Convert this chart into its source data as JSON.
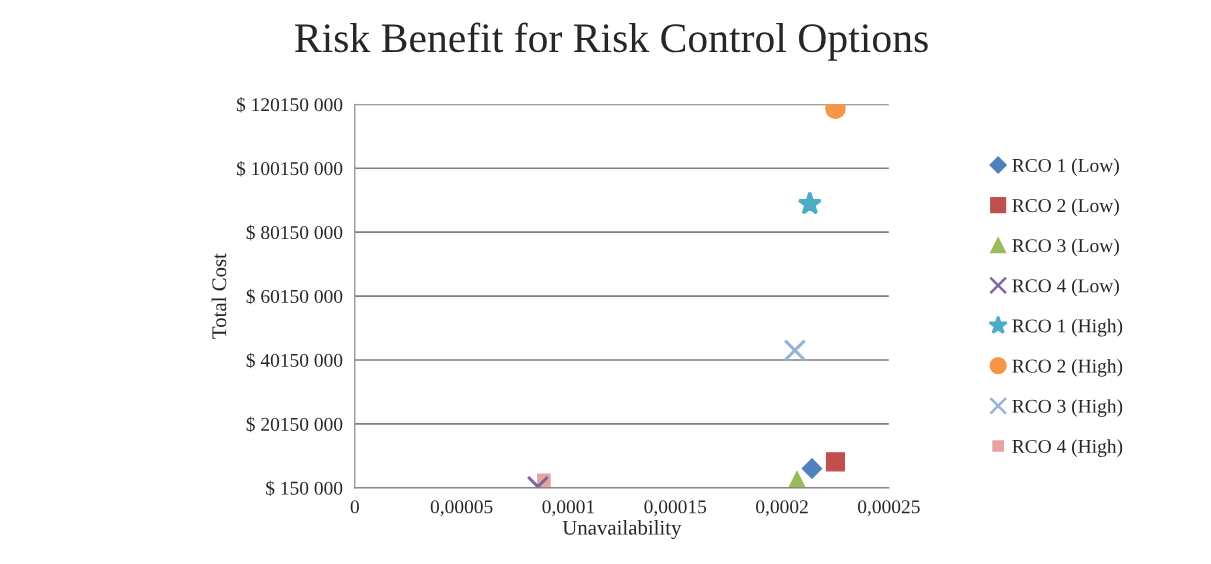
{
  "chart_data": {
    "type": "scatter",
    "title": "Risk Benefit for Risk Control Options",
    "xlabel": "Unavailability",
    "ylabel": "Total Cost",
    "xlim": [
      0,
      0.00025
    ],
    "xticks": [
      {
        "value": 0,
        "label": "0"
      },
      {
        "value": 5e-05,
        "label": "0,00005"
      },
      {
        "value": 0.0001,
        "label": "0,0001"
      },
      {
        "value": 0.00015,
        "label": "0,00015"
      },
      {
        "value": 0.0002,
        "label": "0,0002"
      },
      {
        "value": 0.00025,
        "label": "0,00025"
      }
    ],
    "ylim": [
      150000,
      120150000
    ],
    "yticks": [
      {
        "value": 150000,
        "label": "$ 150 000"
      },
      {
        "value": 20150000,
        "label": "$ 20150 000"
      },
      {
        "value": 40150000,
        "label": "$ 40150 000"
      },
      {
        "value": 60150000,
        "label": "$ 60150 000"
      },
      {
        "value": 80150000,
        "label": "$ 80150 000"
      },
      {
        "value": 100150000,
        "label": "$ 100150 000"
      },
      {
        "value": 120150000,
        "label": "$ 120150 000"
      }
    ],
    "grid": "y",
    "legend": "right",
    "series": [
      {
        "name": "RCO 1 (Low)",
        "color": "#4f81bd",
        "marker": "diamond",
        "x": [
          0.000214
        ],
        "values": [
          6200000
        ]
      },
      {
        "name": "RCO 2 (Low)",
        "color": "#c0504d",
        "marker": "square",
        "x": [
          0.000225
        ],
        "values": [
          8300000
        ]
      },
      {
        "name": "RCO 3 (Low)",
        "color": "#9bbb59",
        "marker": "triangle",
        "x": [
          0.000207
        ],
        "values": [
          2500000
        ]
      },
      {
        "name": "RCO 4 (Low)",
        "color": "#8064a2",
        "marker": "cross",
        "x": [
          8.57e-05
        ],
        "values": [
          500000
        ]
      },
      {
        "name": "RCO 1 (High)",
        "color": "#4bacc6",
        "marker": "star",
        "x": [
          0.000213
        ],
        "values": [
          89000000
        ]
      },
      {
        "name": "RCO 2 (High)",
        "color": "#f79646",
        "marker": "circle",
        "x": [
          0.000225
        ],
        "values": [
          118800000
        ]
      },
      {
        "name": "RCO 3 (High)",
        "color": "#95b3d7",
        "marker": "cross",
        "x": [
          0.000206
        ],
        "values": [
          43200000
        ]
      },
      {
        "name": "RCO 4 (High)",
        "color": "#e6a3a2",
        "marker": "square",
        "x": [
          8.85e-05
        ],
        "values": [
          2500000
        ]
      }
    ]
  }
}
